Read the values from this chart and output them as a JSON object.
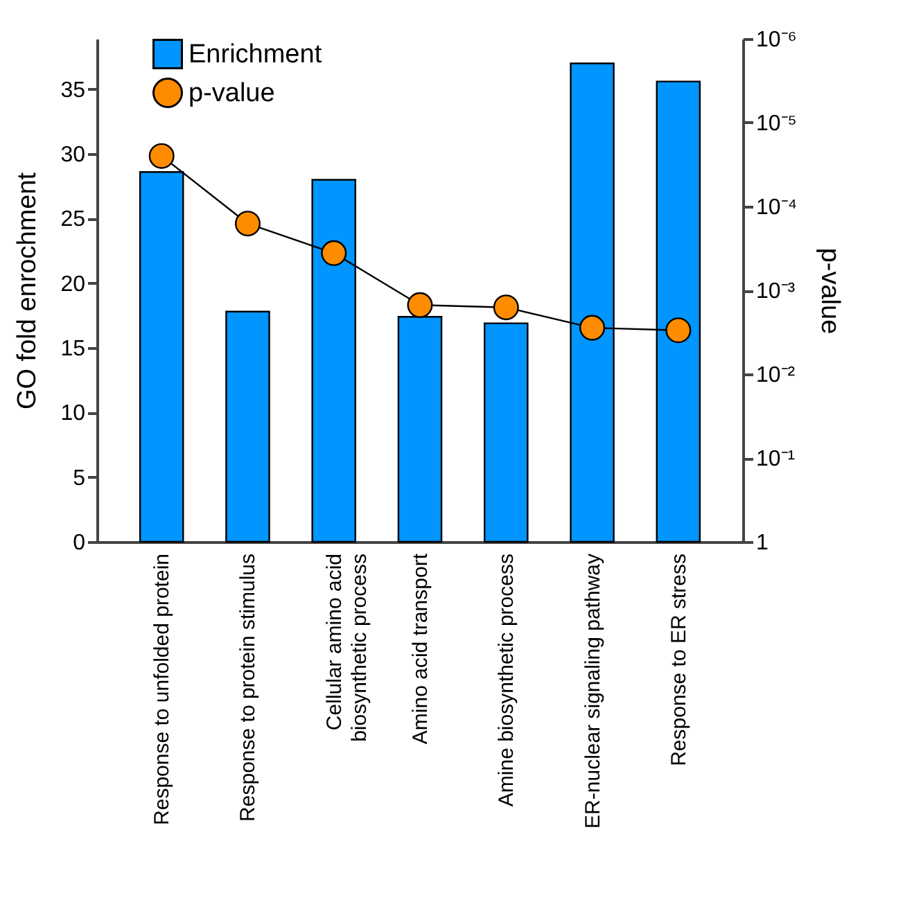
{
  "chart_data": {
    "type": "bar",
    "categories": [
      "Response to unfolded protein",
      "Response to protein stimulus",
      "Cellular amino acid biosynthetic process",
      "Amino acid transport",
      "Amine biosynthetic process",
      "ER-nuclear signaling pathway",
      "Response to ER stress"
    ],
    "series": [
      {
        "name": "Enrichment",
        "color": "#0095ff",
        "values": [
          28.6,
          17.8,
          28.0,
          17.4,
          16.9,
          37.0,
          35.6
        ]
      },
      {
        "name": "p-value",
        "type": "line",
        "axis": "y2",
        "color": "#ff8c00",
        "values": [
          2.5e-05,
          0.00016,
          0.00036,
          0.0015,
          0.0016,
          0.0028,
          0.003
        ]
      }
    ],
    "ylabel": "GO fold enrochment",
    "y2label": "p-value",
    "ylim": [
      0,
      38.9
    ],
    "yticks": [
      0,
      5,
      10,
      15,
      20,
      25,
      30,
      35
    ],
    "y2lim": [
      1,
      1e-06
    ],
    "y2ticks": [
      1,
      {
        "value": 0.1,
        "label": "10⁻¹"
      },
      {
        "value": 0.01,
        "label": "10⁻²"
      },
      {
        "value": 0.001,
        "label": "10⁻³"
      },
      {
        "value": 0.0001,
        "label": "10⁻⁴"
      },
      {
        "value": 1e-05,
        "label": "10⁻⁵"
      },
      {
        "value": 1e-06,
        "label": "10⁻⁶"
      }
    ],
    "log": "y2",
    "grid": false,
    "legend": "top left",
    "marker": "circle",
    "line_style": "solid"
  }
}
